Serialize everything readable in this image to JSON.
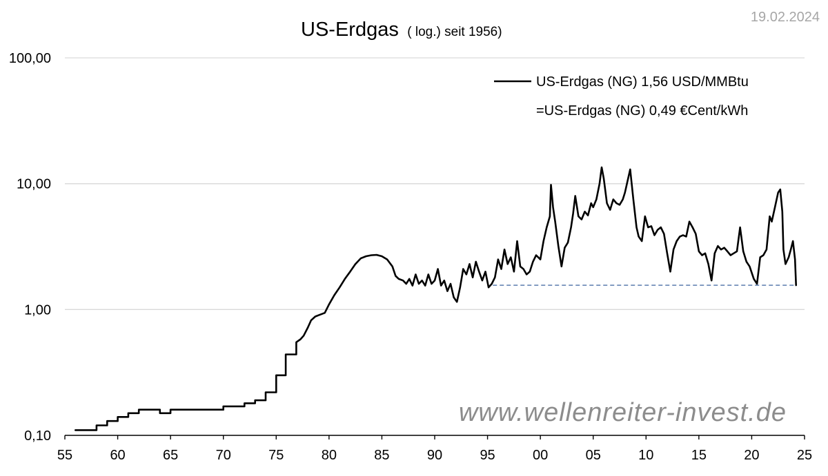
{
  "chart_data": {
    "type": "line",
    "title": "US-Erdgas",
    "subtitle": "( log.) seit 1956)",
    "date": "19.02.2024",
    "watermark": "www.wellenreiter-invest.de",
    "y_scale": "log",
    "ylim": [
      0.1,
      100
    ],
    "xlim": [
      1955,
      2025
    ],
    "grid": true,
    "legend_position": "top-right",
    "x_ticks": [
      {
        "value": 1955,
        "label": "55"
      },
      {
        "value": 1960,
        "label": "60"
      },
      {
        "value": 1965,
        "label": "65"
      },
      {
        "value": 1970,
        "label": "70"
      },
      {
        "value": 1975,
        "label": "75"
      },
      {
        "value": 1980,
        "label": "80"
      },
      {
        "value": 1985,
        "label": "85"
      },
      {
        "value": 1990,
        "label": "90"
      },
      {
        "value": 1995,
        "label": "95"
      },
      {
        "value": 2000,
        "label": "00"
      },
      {
        "value": 2005,
        "label": "05"
      },
      {
        "value": 2010,
        "label": "10"
      },
      {
        "value": 2015,
        "label": "15"
      },
      {
        "value": 2020,
        "label": "20"
      },
      {
        "value": 2025,
        "label": "25"
      }
    ],
    "y_ticks": [
      {
        "value": 0.1,
        "label": "0,10"
      },
      {
        "value": 1,
        "label": "1,00"
      },
      {
        "value": 10,
        "label": "10,00"
      },
      {
        "value": 100,
        "label": "100,00"
      }
    ],
    "legend": [
      {
        "text": "US-Erdgas (NG) 1,56 USD/MMBtu",
        "has_line": true
      },
      {
        "text": "=US-Erdgas (NG) 0,49 €Cent/kWh",
        "has_line": false
      }
    ],
    "reference_line": {
      "value": 1.56,
      "x_start": 1995.5,
      "x_end": 2024.2
    },
    "series": [
      {
        "points": [
          [
            1956.0,
            0.11
          ],
          [
            1958.0,
            0.11
          ],
          [
            1958.0,
            0.12
          ],
          [
            1959.0,
            0.12
          ],
          [
            1959.0,
            0.13
          ],
          [
            1960.0,
            0.13
          ],
          [
            1960.0,
            0.14
          ],
          [
            1961.0,
            0.14
          ],
          [
            1961.0,
            0.15
          ],
          [
            1962.0,
            0.15
          ],
          [
            1962.0,
            0.16
          ],
          [
            1964.0,
            0.16
          ],
          [
            1964.0,
            0.15
          ],
          [
            1965.0,
            0.15
          ],
          [
            1965.0,
            0.16
          ],
          [
            1970.0,
            0.16
          ],
          [
            1970.0,
            0.17
          ],
          [
            1972.0,
            0.17
          ],
          [
            1972.0,
            0.18
          ],
          [
            1973.0,
            0.18
          ],
          [
            1973.0,
            0.19
          ],
          [
            1974.0,
            0.19
          ],
          [
            1974.0,
            0.22
          ],
          [
            1975.0,
            0.22
          ],
          [
            1975.0,
            0.3
          ],
          [
            1975.9,
            0.3
          ],
          [
            1975.9,
            0.44
          ],
          [
            1976.9,
            0.44
          ],
          [
            1976.9,
            0.55
          ],
          [
            1977.3,
            0.58
          ],
          [
            1977.6,
            0.62
          ],
          [
            1978.0,
            0.72
          ],
          [
            1978.3,
            0.82
          ],
          [
            1978.7,
            0.88
          ],
          [
            1979.0,
            0.9
          ],
          [
            1979.3,
            0.92
          ],
          [
            1979.6,
            0.94
          ],
          [
            1980.0,
            1.1
          ],
          [
            1980.5,
            1.3
          ],
          [
            1981.0,
            1.5
          ],
          [
            1981.5,
            1.75
          ],
          [
            1982.0,
            2.0
          ],
          [
            1982.5,
            2.3
          ],
          [
            1983.0,
            2.55
          ],
          [
            1983.5,
            2.65
          ],
          [
            1984.0,
            2.7
          ],
          [
            1984.5,
            2.72
          ],
          [
            1985.0,
            2.65
          ],
          [
            1985.5,
            2.5
          ],
          [
            1986.0,
            2.2
          ],
          [
            1986.3,
            1.85
          ],
          [
            1986.6,
            1.75
          ],
          [
            1987.0,
            1.7
          ],
          [
            1987.3,
            1.6
          ],
          [
            1987.6,
            1.75
          ],
          [
            1987.9,
            1.55
          ],
          [
            1988.2,
            1.9
          ],
          [
            1988.5,
            1.6
          ],
          [
            1988.8,
            1.7
          ],
          [
            1989.1,
            1.55
          ],
          [
            1989.4,
            1.9
          ],
          [
            1989.7,
            1.6
          ],
          [
            1990.0,
            1.7
          ],
          [
            1990.3,
            2.1
          ],
          [
            1990.6,
            1.55
          ],
          [
            1990.9,
            1.7
          ],
          [
            1991.2,
            1.4
          ],
          [
            1991.5,
            1.6
          ],
          [
            1991.8,
            1.25
          ],
          [
            1992.1,
            1.15
          ],
          [
            1992.4,
            1.5
          ],
          [
            1992.7,
            2.1
          ],
          [
            1993.0,
            1.9
          ],
          [
            1993.3,
            2.3
          ],
          [
            1993.6,
            1.8
          ],
          [
            1993.9,
            2.4
          ],
          [
            1994.2,
            2.0
          ],
          [
            1994.5,
            1.7
          ],
          [
            1994.8,
            2.0
          ],
          [
            1995.1,
            1.5
          ],
          [
            1995.4,
            1.6
          ],
          [
            1995.7,
            1.8
          ],
          [
            1996.0,
            2.5
          ],
          [
            1996.3,
            2.1
          ],
          [
            1996.6,
            3.0
          ],
          [
            1996.9,
            2.3
          ],
          [
            1997.2,
            2.6
          ],
          [
            1997.5,
            2.0
          ],
          [
            1997.8,
            3.5
          ],
          [
            1998.1,
            2.2
          ],
          [
            1998.4,
            2.1
          ],
          [
            1998.7,
            1.9
          ],
          [
            1999.0,
            2.0
          ],
          [
            1999.3,
            2.4
          ],
          [
            1999.6,
            2.7
          ],
          [
            2000.0,
            2.5
          ],
          [
            2000.3,
            3.5
          ],
          [
            2000.6,
            4.5
          ],
          [
            2000.9,
            5.5
          ],
          [
            2001.0,
            9.8
          ],
          [
            2001.2,
            6.5
          ],
          [
            2001.4,
            5.0
          ],
          [
            2001.7,
            3.2
          ],
          [
            2002.0,
            2.2
          ],
          [
            2002.3,
            3.1
          ],
          [
            2002.6,
            3.4
          ],
          [
            2002.9,
            4.5
          ],
          [
            2003.1,
            5.8
          ],
          [
            2003.3,
            8.0
          ],
          [
            2003.6,
            5.5
          ],
          [
            2003.9,
            5.2
          ],
          [
            2004.2,
            6.0
          ],
          [
            2004.5,
            5.6
          ],
          [
            2004.8,
            7.0
          ],
          [
            2005.0,
            6.5
          ],
          [
            2005.3,
            7.5
          ],
          [
            2005.6,
            10.0
          ],
          [
            2005.8,
            13.5
          ],
          [
            2006.0,
            11.0
          ],
          [
            2006.3,
            7.0
          ],
          [
            2006.6,
            6.2
          ],
          [
            2006.9,
            7.5
          ],
          [
            2007.2,
            7.0
          ],
          [
            2007.5,
            6.8
          ],
          [
            2007.8,
            7.5
          ],
          [
            2008.0,
            8.5
          ],
          [
            2008.3,
            11.0
          ],
          [
            2008.5,
            13.0
          ],
          [
            2008.8,
            7.5
          ],
          [
            2009.1,
            4.5
          ],
          [
            2009.3,
            3.8
          ],
          [
            2009.6,
            3.5
          ],
          [
            2009.9,
            5.5
          ],
          [
            2010.2,
            4.5
          ],
          [
            2010.5,
            4.6
          ],
          [
            2010.8,
            3.9
          ],
          [
            2011.1,
            4.3
          ],
          [
            2011.4,
            4.5
          ],
          [
            2011.7,
            4.0
          ],
          [
            2012.0,
            2.8
          ],
          [
            2012.3,
            2.0
          ],
          [
            2012.6,
            3.0
          ],
          [
            2012.9,
            3.5
          ],
          [
            2013.2,
            3.8
          ],
          [
            2013.5,
            3.9
          ],
          [
            2013.8,
            3.8
          ],
          [
            2014.1,
            5.0
          ],
          [
            2014.4,
            4.5
          ],
          [
            2014.7,
            4.0
          ],
          [
            2015.0,
            2.9
          ],
          [
            2015.3,
            2.7
          ],
          [
            2015.6,
            2.8
          ],
          [
            2015.9,
            2.3
          ],
          [
            2016.2,
            1.7
          ],
          [
            2016.5,
            2.8
          ],
          [
            2016.8,
            3.2
          ],
          [
            2017.1,
            3.0
          ],
          [
            2017.4,
            3.1
          ],
          [
            2017.7,
            2.9
          ],
          [
            2018.0,
            2.7
          ],
          [
            2018.3,
            2.8
          ],
          [
            2018.6,
            2.9
          ],
          [
            2018.9,
            4.5
          ],
          [
            2019.2,
            2.9
          ],
          [
            2019.5,
            2.4
          ],
          [
            2019.8,
            2.2
          ],
          [
            2020.2,
            1.75
          ],
          [
            2020.5,
            1.6
          ],
          [
            2020.8,
            2.6
          ],
          [
            2021.1,
            2.7
          ],
          [
            2021.4,
            3.0
          ],
          [
            2021.7,
            5.5
          ],
          [
            2021.9,
            5.0
          ],
          [
            2022.2,
            6.5
          ],
          [
            2022.5,
            8.5
          ],
          [
            2022.7,
            9.0
          ],
          [
            2022.9,
            6.0
          ],
          [
            2023.0,
            3.0
          ],
          [
            2023.2,
            2.3
          ],
          [
            2023.5,
            2.6
          ],
          [
            2023.7,
            3.0
          ],
          [
            2023.9,
            3.5
          ],
          [
            2024.1,
            2.5
          ],
          [
            2024.2,
            1.56
          ]
        ]
      }
    ]
  }
}
